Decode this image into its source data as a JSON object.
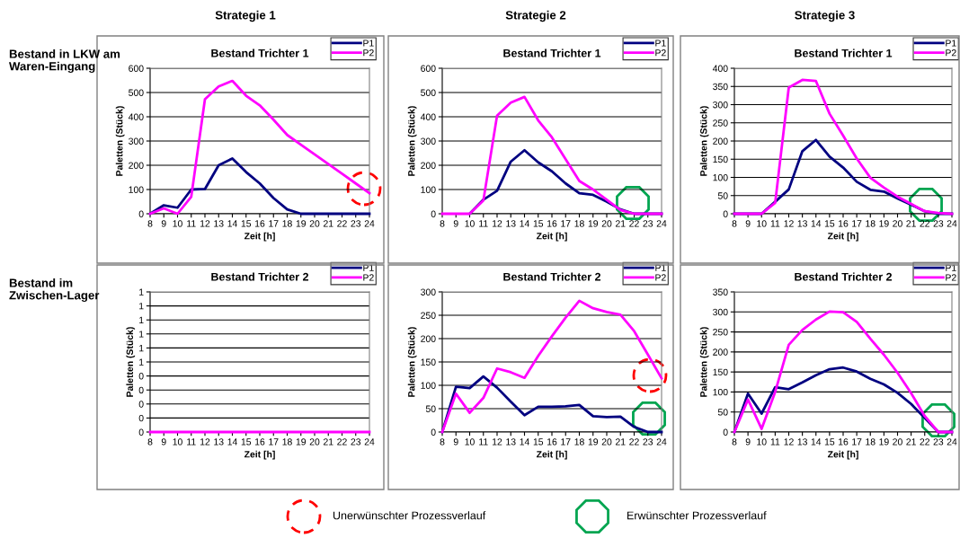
{
  "chart_data": [
    {
      "type": "line",
      "title": "Bestand Trichter 1",
      "xlabel": "Zeit [h]",
      "ylabel": "Paletten (Stück)",
      "x": [
        8,
        9,
        10,
        11,
        12,
        13,
        14,
        15,
        16,
        17,
        18,
        19,
        20,
        21,
        22,
        23,
        24
      ],
      "xlim": [
        8,
        24
      ],
      "xticks": [
        8,
        9,
        10,
        11,
        12,
        13,
        14,
        15,
        16,
        17,
        18,
        19,
        20,
        21,
        22,
        23,
        24
      ],
      "ylim": [
        0,
        600
      ],
      "yticks": [
        0,
        100,
        200,
        300,
        400,
        500,
        600
      ],
      "grid": "y",
      "legend": "top right",
      "annotations": [
        "Strategie 1",
        "Bestand in LKW am Waren-Eingang"
      ],
      "series": [
        {
          "name": "P1",
          "color": "#000080",
          "values": [
            0,
            35,
            25,
            100,
            102,
            200,
            228,
            172,
            125,
            65,
            18,
            0,
            0,
            0,
            0,
            0,
            0
          ]
        },
        {
          "name": "P2",
          "color": "#ff00ff",
          "values": [
            0,
            22,
            0,
            70,
            472,
            525,
            548,
            487,
            447,
            388,
            325,
            285,
            245,
            205,
            165,
            125,
            85
          ]
        }
      ]
    },
    {
      "type": "line",
      "title": "Bestand Trichter 1",
      "xlabel": "Zeit [h]",
      "ylabel": "Paletten (Stück)",
      "x": [
        8,
        9,
        10,
        11,
        12,
        13,
        14,
        15,
        16,
        17,
        18,
        19,
        20,
        21,
        22,
        23,
        24
      ],
      "xlim": [
        8,
        24
      ],
      "xticks": [
        8,
        9,
        10,
        11,
        12,
        13,
        14,
        15,
        16,
        17,
        18,
        19,
        20,
        21,
        22,
        23,
        24
      ],
      "ylim": [
        0,
        600
      ],
      "yticks": [
        0,
        100,
        200,
        300,
        400,
        500,
        600
      ],
      "grid": "y",
      "legend": "top right",
      "annotations": [
        "Strategie 2"
      ],
      "series": [
        {
          "name": "P1",
          "color": "#000080",
          "values": [
            null,
            null,
            0,
            58,
            95,
            215,
            262,
            212,
            175,
            125,
            85,
            78,
            50,
            18,
            0,
            0,
            0
          ]
        },
        {
          "name": "P2",
          "color": "#ff00ff",
          "values": [
            0,
            0,
            0,
            55,
            405,
            458,
            482,
            385,
            315,
            225,
            135,
            100,
            58,
            15,
            0,
            0,
            0
          ]
        }
      ]
    },
    {
      "type": "line",
      "title": "Bestand Trichter 1",
      "xlabel": "Zeit [h]",
      "ylabel": "Paletten (Stück)",
      "x": [
        8,
        9,
        10,
        11,
        12,
        13,
        14,
        15,
        16,
        17,
        18,
        19,
        20,
        21,
        22,
        23,
        24
      ],
      "xlim": [
        8,
        24
      ],
      "xticks": [
        8,
        9,
        10,
        11,
        12,
        13,
        14,
        15,
        16,
        17,
        18,
        19,
        20,
        21,
        22,
        23,
        24
      ],
      "ylim": [
        0,
        400
      ],
      "yticks": [
        0,
        50,
        100,
        150,
        200,
        250,
        300,
        350,
        400
      ],
      "grid": "y",
      "legend": "top right",
      "annotations": [
        "Strategie 3"
      ],
      "series": [
        {
          "name": "P1",
          "color": "#000080",
          "values": [
            0,
            0,
            0,
            33,
            67,
            172,
            203,
            157,
            127,
            88,
            66,
            61,
            42,
            25,
            7,
            0,
            0
          ]
        },
        {
          "name": "P2",
          "color": "#ff00ff",
          "values": [
            0,
            0,
            0,
            30,
            347,
            368,
            365,
            275,
            215,
            152,
            99,
            72,
            47,
            27,
            7,
            2,
            0
          ]
        }
      ]
    },
    {
      "type": "line",
      "title": "Bestand Trichter 2",
      "xlabel": "Zeit [h]",
      "ylabel": "Paletten (Stück)",
      "x": [
        8,
        9,
        10,
        11,
        12,
        13,
        14,
        15,
        16,
        17,
        18,
        19,
        20,
        21,
        22,
        23,
        24
      ],
      "xlim": [
        8,
        24
      ],
      "xticks": [
        8,
        9,
        10,
        11,
        12,
        13,
        14,
        15,
        16,
        17,
        18,
        19,
        20,
        21,
        22,
        23,
        24
      ],
      "ylim": [
        0,
        1
      ],
      "yticks": [
        0,
        {
          "value": 0.1,
          "label": "0"
        },
        {
          "value": 0.2,
          "label": "0"
        },
        {
          "value": 0.3,
          "label": "0"
        },
        {
          "value": 0.4,
          "label": "0"
        },
        {
          "value": 0.5,
          "label": "1"
        },
        {
          "value": 0.6,
          "label": "1"
        },
        {
          "value": 0.7,
          "label": "1"
        },
        {
          "value": 0.8,
          "label": "1"
        },
        {
          "value": 0.9,
          "label": "1"
        },
        1
      ],
      "grid": "y",
      "legend": "top right",
      "annotations": [
        "Bestand im Zwischen-Lager"
      ],
      "series": [
        {
          "name": "P1",
          "color": "#000080",
          "values": [
            null,
            null,
            null,
            null,
            null,
            null,
            null,
            null,
            null,
            null,
            null,
            null,
            null,
            null,
            null,
            null,
            null
          ]
        },
        {
          "name": "P2",
          "color": "#ff00ff",
          "values": [
            0,
            0,
            0,
            0,
            0,
            0,
            0,
            0,
            0,
            0,
            0,
            0,
            0,
            0,
            0,
            0,
            0
          ]
        }
      ]
    },
    {
      "type": "line",
      "title": "Bestand Trichter 2",
      "xlabel": "Zeit [h]",
      "ylabel": "Paletten (Stück)",
      "x": [
        8,
        9,
        10,
        11,
        12,
        13,
        14,
        15,
        16,
        17,
        18,
        19,
        20,
        21,
        22,
        23,
        24
      ],
      "xlim": [
        8,
        24
      ],
      "xticks": [
        8,
        9,
        10,
        11,
        12,
        13,
        14,
        15,
        16,
        17,
        18,
        19,
        20,
        21,
        22,
        23,
        24
      ],
      "ylim": [
        0,
        300
      ],
      "yticks": [
        0,
        50,
        100,
        150,
        200,
        250,
        300
      ],
      "grid": "y",
      "legend": "top right",
      "annotations": [
        "Unerwünschter Prozessverlauf",
        "Erwünschter Prozessverlauf"
      ],
      "series": [
        {
          "name": "P1",
          "color": "#000080",
          "values": [
            0,
            97,
            94,
            119,
            95,
            65,
            36,
            54,
            54,
            55,
            58,
            34,
            32,
            33,
            11,
            0,
            0
          ]
        },
        {
          "name": "P2",
          "color": "#ff00ff",
          "values": [
            0,
            82,
            41,
            73,
            136,
            128,
            116,
            163,
            205,
            245,
            281,
            265,
            257,
            251,
            216,
            166,
            115
          ]
        }
      ]
    },
    {
      "type": "line",
      "title": "Bestand Trichter 2",
      "xlabel": "Zeit [h]",
      "ylabel": "Paletten (Stück)",
      "x": [
        8,
        9,
        10,
        11,
        12,
        13,
        14,
        15,
        16,
        17,
        18,
        19,
        20,
        21,
        22,
        23,
        24
      ],
      "xlim": [
        8,
        24
      ],
      "xticks": [
        8,
        9,
        10,
        11,
        12,
        13,
        14,
        15,
        16,
        17,
        18,
        19,
        20,
        21,
        22,
        23,
        24
      ],
      "ylim": [
        0,
        350
      ],
      "yticks": [
        0,
        50,
        100,
        150,
        200,
        250,
        300,
        350
      ],
      "grid": "y",
      "legend": "top right",
      "series": [
        {
          "name": "P1",
          "color": "#000080",
          "values": [
            0,
            96,
            46,
            112,
            107,
            124,
            142,
            157,
            161,
            151,
            133,
            119,
            98,
            70,
            35,
            0,
            0
          ]
        },
        {
          "name": "P2",
          "color": "#ff00ff",
          "values": [
            0,
            81,
            8,
            100,
            218,
            255,
            281,
            301,
            299,
            275,
            233,
            193,
            148,
            97,
            40,
            0,
            0
          ]
        }
      ]
    }
  ]
}
